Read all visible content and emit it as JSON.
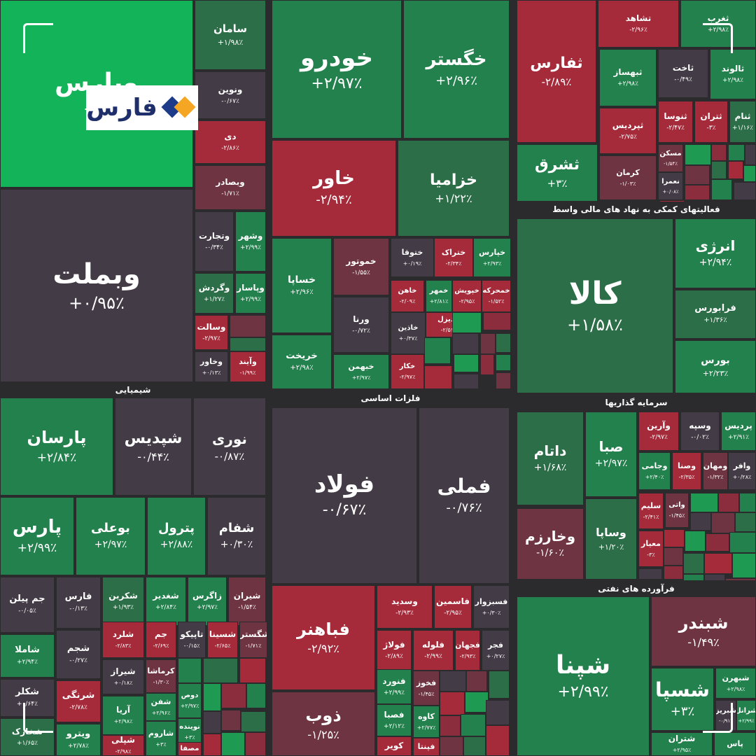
{
  "brand": {
    "name": "فارس",
    "icon": "fars-logo-icon"
  },
  "sectors": [
    {
      "id": "chem",
      "label": "شیمیایی"
    },
    {
      "id": "metal",
      "label": "فلزات اساسی"
    },
    {
      "id": "invest",
      "label": "سرمایه گذاریها"
    },
    {
      "id": "fin",
      "label": "فعالیتهای کمکی به نهاد های مالی واسط"
    },
    {
      "id": "oil",
      "label": "فرآورده های نفتی"
    }
  ],
  "tiles": [
    {
      "symbol": "وپارس",
      "change": "+۹/",
      "color": "bright"
    },
    {
      "symbol": "سامان",
      "change": "+۱/۹۸٪",
      "color": "g3"
    },
    {
      "symbol": "ونوین",
      "change": "-۰/۶۷٪",
      "color": "n"
    },
    {
      "symbol": "دی",
      "change": "-۲/۸۶٪",
      "color": "r"
    },
    {
      "symbol": "وبصادر",
      "change": "-۱/۷۱٪",
      "color": "r3"
    },
    {
      "symbol": "خودرو",
      "change": "+۲/۹۷٪",
      "color": "g2"
    },
    {
      "symbol": "خگستر",
      "change": "+۲/۹۶٪",
      "color": "g2"
    },
    {
      "symbol": "خاور",
      "change": "-۲/۹۴٪",
      "color": "r"
    },
    {
      "symbol": "خزامیا",
      "change": "+۱/۲۲٪",
      "color": "g3"
    },
    {
      "symbol": "خساپا",
      "change": "+۲/۹۶٪",
      "color": "g2"
    },
    {
      "symbol": "خریخت",
      "change": "+۲/۹۸٪",
      "color": "g2"
    },
    {
      "symbol": "خموتور",
      "change": "-۱/۵۵٪",
      "color": "r3"
    },
    {
      "symbol": "ورنا",
      "change": "-۰/۷۲٪",
      "color": "n"
    },
    {
      "symbol": "خبهمن",
      "change": "+۲/۹۷٪",
      "color": "g2"
    },
    {
      "symbol": "ختوقا",
      "change": "+۰/۱۹٪",
      "color": "n"
    },
    {
      "symbol": "ختراک",
      "change": "-۲/۳۴٪",
      "color": "r"
    },
    {
      "symbol": "خپارس",
      "change": "+۲/۹۳٪",
      "color": "g2"
    },
    {
      "symbol": "خاهن",
      "change": "-۲/۰۹٪",
      "color": "r"
    },
    {
      "symbol": "خمهر",
      "change": "+۲/۸۱٪",
      "color": "g2"
    },
    {
      "symbol": "خپویش",
      "change": "-۲/۹۵٪",
      "color": "r"
    },
    {
      "symbol": "خمحرکه",
      "change": "-۱/۵۲٪",
      "color": "r"
    },
    {
      "symbol": "خدیزل",
      "change": "-۲/۵۱٪",
      "color": "r"
    },
    {
      "symbol": "خاذین",
      "change": "+۰/۳۷٪",
      "color": "n"
    },
    {
      "symbol": "خکار",
      "change": "-۲/۹۷٪",
      "color": "r"
    },
    {
      "symbol": "ثفارس",
      "change": "-۲/۸۹٪",
      "color": "r"
    },
    {
      "symbol": "تشاهد",
      "change": "-۲/۹۶٪",
      "color": "r"
    },
    {
      "symbol": "ثغرب",
      "change": "+۲/۹۸٪",
      "color": "g2"
    },
    {
      "symbol": "ثبهساز",
      "change": "+۲/۹۸٪",
      "color": "g2"
    },
    {
      "symbol": "ثاخت",
      "change": "-۰/۴۹٪",
      "color": "n"
    },
    {
      "symbol": "ثالوند",
      "change": "+۲/۹۸٪",
      "color": "g2"
    },
    {
      "symbol": "ثپردیس",
      "change": "-۲/۷۵٪",
      "color": "r"
    },
    {
      "symbol": "ثنوسا",
      "change": "-۲/۴۷٪",
      "color": "r"
    },
    {
      "symbol": "ثتران",
      "change": "-۳٪",
      "color": "r"
    },
    {
      "symbol": "ثنام",
      "change": "+۱/۱۶٪",
      "color": "g3"
    },
    {
      "symbol": "ثشرق",
      "change": "+۳٪",
      "color": "g2"
    },
    {
      "symbol": "کرمان",
      "change": "-۱/۰۳٪",
      "color": "r3"
    },
    {
      "symbol": "مسکن",
      "change": "-۱/۵۴٪",
      "color": "r3"
    },
    {
      "symbol": "نعمرا",
      "change": "+۰/۰۸٪",
      "color": "n"
    },
    {
      "symbol": "وبملت",
      "change": "+۰/۹۵٪",
      "color": "n"
    },
    {
      "symbol": "وتجارت",
      "change": "-۰/۳۴٪",
      "color": "n"
    },
    {
      "symbol": "وشهر",
      "change": "+۲/۹۹٪",
      "color": "g2"
    },
    {
      "symbol": "وگردش",
      "change": "+۱/۲۷٪",
      "color": "g3"
    },
    {
      "symbol": "وپاسار",
      "change": "+۲/۹۹٪",
      "color": "g2"
    },
    {
      "symbol": "وسالت",
      "change": "-۲/۹۷٪",
      "color": "r"
    },
    {
      "symbol": "وخاور",
      "change": "+۰/۱۳٪",
      "color": "n"
    },
    {
      "symbol": "وآیند",
      "change": "-۱/۹۹٪",
      "color": "r"
    },
    {
      "symbol": "کالا",
      "change": "+۱/۵۸٪",
      "color": "g3"
    },
    {
      "symbol": "انرژی",
      "change": "+۲/۹۴٪",
      "color": "g2"
    },
    {
      "symbol": "فرابورس",
      "change": "+۱/۳۶٪",
      "color": "g3"
    },
    {
      "symbol": "بورس",
      "change": "+۲/۲۳٪",
      "color": "g2"
    },
    {
      "symbol": "پارسان",
      "change": "+۲/۸۴٪",
      "color": "g2"
    },
    {
      "symbol": "شپدیس",
      "change": "-۰/۴۴٪",
      "color": "n"
    },
    {
      "symbol": "نوری",
      "change": "-۰/۸۷٪",
      "color": "n"
    },
    {
      "symbol": "پارس",
      "change": "+۲/۹۹٪",
      "color": "g2"
    },
    {
      "symbol": "بوعلی",
      "change": "+۲/۹۷٪",
      "color": "g2"
    },
    {
      "symbol": "پترول",
      "change": "+۲/۸۸٪",
      "color": "g2"
    },
    {
      "symbol": "شفام",
      "change": "+۰/۳۰٪",
      "color": "n"
    },
    {
      "symbol": "جم پیلن",
      "change": "-۰/۰۵٪",
      "color": "n"
    },
    {
      "symbol": "فارس",
      "change": "-۰/۱۳٪",
      "color": "n"
    },
    {
      "symbol": "شکربن",
      "change": "+۱/۹۳٪",
      "color": "g3"
    },
    {
      "symbol": "شغدیر",
      "change": "+۲/۸۴٪",
      "color": "g2"
    },
    {
      "symbol": "زاگرس",
      "change": "+۲/۹۷٪",
      "color": "g2"
    },
    {
      "symbol": "شیران",
      "change": "-۱/۵۴٪",
      "color": "r3"
    },
    {
      "symbol": "شاملا",
      "change": "+۲/۹۴٪",
      "color": "g2"
    },
    {
      "symbol": "شجم",
      "change": "-۰/۲۷٪",
      "color": "n"
    },
    {
      "symbol": "شلرد",
      "change": "-۲/۸۳٪",
      "color": "r"
    },
    {
      "symbol": "جم",
      "change": "-۲/۶۹٪",
      "color": "r"
    },
    {
      "symbol": "تاپیکو",
      "change": "-۰/۱۵٪",
      "color": "n"
    },
    {
      "symbol": "شسینا",
      "change": "-۲/۶۵٪",
      "color": "r"
    },
    {
      "symbol": "شگسترا",
      "change": "-۱/۷۱٪",
      "color": "r3"
    },
    {
      "symbol": "شیراز",
      "change": "+۰/۱۸٪",
      "color": "n"
    },
    {
      "symbol": "کرماشا",
      "change": "-۱/۳۰٪",
      "color": "r3"
    },
    {
      "symbol": "شکلر",
      "change": "+۰/۶۴٪",
      "color": "n"
    },
    {
      "symbol": "شرنگی",
      "change": "-۲/۷۸٪",
      "color": "r"
    },
    {
      "symbol": "آریا",
      "change": "+۲/۹۸٪",
      "color": "g2"
    },
    {
      "symbol": "شفن",
      "change": "+۲/۹۶٪",
      "color": "g2"
    },
    {
      "symbol": "دوص",
      "change": "+۲/۹۷٪",
      "color": "g2"
    },
    {
      "symbol": "شاروم",
      "change": "+۳٪",
      "color": "g2"
    },
    {
      "symbol": "نوینده",
      "change": "+۳٪",
      "color": "g2"
    },
    {
      "symbol": "شخارک",
      "change": "+۱/۶۵٪",
      "color": "g3"
    },
    {
      "symbol": "ویترو",
      "change": "+۲/۷۸٪",
      "color": "g2"
    },
    {
      "symbol": "شپلی",
      "change": "-۲/۹۸٪",
      "color": "r"
    },
    {
      "symbol": "مصفا",
      "change": "",
      "color": "r"
    },
    {
      "symbol": "فولاد",
      "change": "-۰/۶۷٪",
      "color": "n"
    },
    {
      "symbol": "فملی",
      "change": "-۰/۷۶٪",
      "color": "n"
    },
    {
      "symbol": "فباهنر",
      "change": "-۲/۹۲٪",
      "color": "r"
    },
    {
      "symbol": "وسدید",
      "change": "-۲/۹۳٪",
      "color": "r"
    },
    {
      "symbol": "فاسمین",
      "change": "-۲/۹۵٪",
      "color": "r"
    },
    {
      "symbol": "فسبزوار",
      "change": "+۰/۳۰٪",
      "color": "n"
    },
    {
      "symbol": "فولاژ",
      "change": "-۲/۸۹٪",
      "color": "r"
    },
    {
      "symbol": "فلوله",
      "change": "-۲/۹۹٪",
      "color": "r"
    },
    {
      "symbol": "فجهان",
      "change": "-۲/۹۳٪",
      "color": "r"
    },
    {
      "symbol": "فجر",
      "change": "+۰/۲۷٪",
      "color": "n"
    },
    {
      "symbol": "ذوب",
      "change": "-۱/۲۵٪",
      "color": "r3"
    },
    {
      "symbol": "فنورد",
      "change": "+۲/۹۹٪",
      "color": "g2"
    },
    {
      "symbol": "فخوز",
      "change": "-۱/۴۵٪",
      "color": "r3"
    },
    {
      "symbol": "فصبا",
      "change": "+۲/۱۲٪",
      "color": "g2"
    },
    {
      "symbol": "کاوه",
      "change": "+۲/۷۷٪",
      "color": "g2"
    },
    {
      "symbol": "کویر",
      "change": "",
      "color": "r"
    },
    {
      "symbol": "فپنتا",
      "change": "",
      "color": "r"
    },
    {
      "symbol": "پردیس",
      "change": "+۲/۹۱٪",
      "color": "g2"
    },
    {
      "symbol": "وسپه",
      "change": "-۰/۰۲٪",
      "color": "n"
    },
    {
      "symbol": "وآرین",
      "change": "-۲/۹۷٪",
      "color": "r"
    },
    {
      "symbol": "صبا",
      "change": "+۲/۹۷٪",
      "color": "g2"
    },
    {
      "symbol": "داتام",
      "change": "+۱/۶۸٪",
      "color": "g3"
    },
    {
      "symbol": "وافر",
      "change": "+۰/۲۸٪",
      "color": "n"
    },
    {
      "symbol": "ومهان",
      "change": "-۱/۳۲٪",
      "color": "r3"
    },
    {
      "symbol": "وصنا",
      "change": "-۲/۳۵٪",
      "color": "r"
    },
    {
      "symbol": "وجامی",
      "change": "+۲/۴۰٪",
      "color": "g2"
    },
    {
      "symbol": "واتی",
      "change": "-۱/۴۵٪",
      "color": "r3"
    },
    {
      "symbol": "سلیم",
      "change": "-۲/۴۱٪",
      "color": "r"
    },
    {
      "symbol": "وخارزم",
      "change": "-۱/۶۰٪",
      "color": "r3"
    },
    {
      "symbol": "وساپا",
      "change": "+۱/۲۰٪",
      "color": "g3"
    },
    {
      "symbol": "معیار",
      "change": "-۳٪",
      "color": "r"
    },
    {
      "symbol": "شپنا",
      "change": "+۲/۹۹٪",
      "color": "g2"
    },
    {
      "symbol": "شبندر",
      "change": "-۱/۴۹٪",
      "color": "r3"
    },
    {
      "symbol": "شسپا",
      "change": "+۳٪",
      "color": "g2"
    },
    {
      "symbol": "شبهرن",
      "change": "+۲/۹۸٪",
      "color": "g2"
    },
    {
      "symbol": "شبریز",
      "change": "-۰/۹۱٪",
      "color": "n"
    },
    {
      "symbol": "شرانل",
      "change": "+۲/۹۹٪",
      "color": "g2"
    },
    {
      "symbol": "شتران",
      "change": "+۲/۹۵٪",
      "color": "g2"
    },
    {
      "symbol": "پاس",
      "change": "",
      "color": "g2"
    }
  ],
  "filler_colors": [
    "r",
    "g",
    "r2",
    "g2",
    "n",
    "r3",
    "g3"
  ]
}
